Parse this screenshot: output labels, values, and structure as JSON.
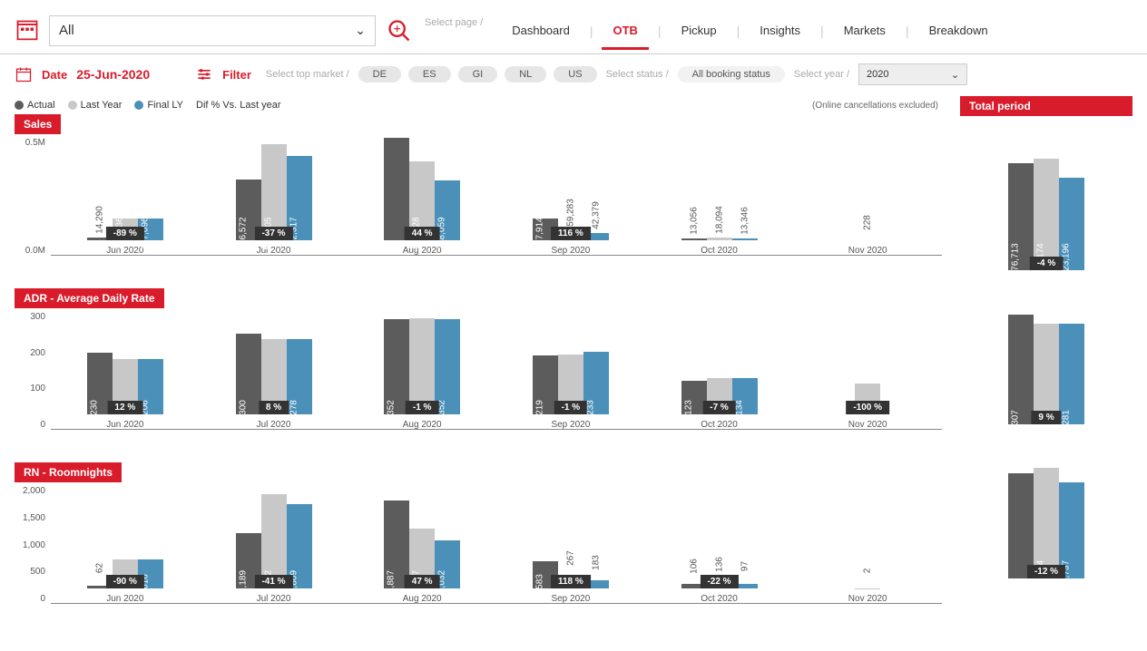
{
  "header": {
    "selector_value": "All",
    "nav_hint": "Select page /",
    "tabs": [
      "Dashboard",
      "OTB",
      "Pickup",
      "Insights",
      "Markets",
      "Breakdown"
    ],
    "active_tab": "OTB"
  },
  "filters": {
    "date_label": "Date",
    "date_value": "25-Jun-2020",
    "filter_label": "Filter",
    "market_hint": "Select top market /",
    "markets": [
      "DE",
      "ES",
      "GI",
      "NL",
      "US"
    ],
    "status_hint": "Select status /",
    "status_value": "All booking status",
    "year_hint": "Select year /",
    "year_value": "2020"
  },
  "legend": {
    "items": [
      {
        "label": "Actual",
        "color": "#5c5c5c"
      },
      {
        "label": "Last Year",
        "color": "#c8c8c8"
      },
      {
        "label": "Final LY",
        "color": "#4a90b8"
      }
    ],
    "diff_label": "Dif % Vs. Last year",
    "note": "(Online cancellations excluded)"
  },
  "colors": {
    "accent": "#d91c2b",
    "badge": "#333333",
    "actual": "#5c5c5c",
    "last_year": "#c8c8c8",
    "final_ly": "#4a90b8"
  },
  "sections": [
    {
      "title": "Sales",
      "y_ticks": [
        "0.5M",
        "0.0M"
      ],
      "y_max": 600000,
      "categories": [
        "Jun 2020",
        "Jul 2020",
        "Aug 2020",
        "Sep 2020",
        "Oct 2020",
        "Nov 2020"
      ],
      "groups": [
        {
          "actual": 14290,
          "ly": 127436,
          "fly": 127096,
          "diff": "-89 %",
          "labels": [
            "14,290",
            "127,436",
            "127,096"
          ]
        },
        {
          "actual": 356572,
          "ly": 562805,
          "fly": 492317,
          "diff": "-37 %",
          "labels": [
            "356,572",
            "562,805",
            "492,317"
          ]
        },
        {
          "actual": null,
          "ly": 460328,
          "fly": 348059,
          "diff": "44 %",
          "labels": [
            "",
            "460,328",
            "348,059"
          ],
          "actual_tall": 600000
        },
        {
          "actual": 127914,
          "ly": 59283,
          "fly": 42379,
          "diff": "116 %",
          "labels": [
            "127,914",
            "59,283",
            "42,379"
          ]
        },
        {
          "actual": 13056,
          "ly": 18094,
          "fly": 13346,
          "diff": null,
          "labels": [
            "13,056",
            "18,094",
            "13,346"
          ]
        },
        {
          "actual": null,
          "ly": 228,
          "fly": null,
          "diff": null,
          "labels": [
            "",
            "228",
            ""
          ]
        }
      ],
      "total": {
        "actual": 1176713,
        "ly": 1228174,
        "fly": 1023196,
        "diff": "-4 %",
        "labels": [
          "1,176,713",
          "1,228,174",
          "1,023,196"
        ],
        "max": 1300000
      }
    },
    {
      "title": "ADR - Average Daily Rate",
      "y_ticks": [
        "300",
        "200",
        "100",
        "0"
      ],
      "y_max": 380,
      "categories": [
        "Jun 2020",
        "Jul 2020",
        "Aug 2020",
        "Sep 2020",
        "Oct 2020",
        "Nov 2020"
      ],
      "groups": [
        {
          "actual": 230,
          "ly": 206,
          "fly": 206,
          "diff": "12 %",
          "labels": [
            "230",
            "206",
            "206"
          ]
        },
        {
          "actual": 300,
          "ly": 278,
          "fly": 278,
          "diff": "8 %",
          "labels": [
            "300",
            "278",
            "278"
          ]
        },
        {
          "actual": 352,
          "ly": 358,
          "fly": 352,
          "diff": "-1 %",
          "labels": [
            "352",
            "358",
            "352"
          ]
        },
        {
          "actual": 219,
          "ly": 222,
          "fly": 233,
          "diff": "-1 %",
          "labels": [
            "219",
            "222",
            "233"
          ]
        },
        {
          "actual": 123,
          "ly": 133,
          "fly": 134,
          "diff": "-7 %",
          "labels": [
            "123",
            "133",
            "134"
          ]
        },
        {
          "actual": null,
          "ly": 114,
          "fly": null,
          "diff": "-100 %",
          "labels": [
            "",
            "114",
            ""
          ]
        }
      ],
      "total": {
        "actual": 307,
        "ly": 283,
        "fly": 281,
        "diff": "9 %",
        "labels": [
          "307",
          "283",
          "281"
        ],
        "max": 330
      }
    },
    {
      "title": "RN - Roomnights",
      "y_ticks": [
        "2,000",
        "1,500",
        "1,000",
        "500",
        "0"
      ],
      "y_max": 2200,
      "categories": [
        "Jun 2020",
        "Jul 2020",
        "Aug 2020",
        "Sep 2020",
        "Oct 2020",
        "Nov 2020"
      ],
      "groups": [
        {
          "actual": 62,
          "ly": 620,
          "fly": 616,
          "diff": "-90 %",
          "labels": [
            "62",
            "620",
            "616"
          ]
        },
        {
          "actual": 1189,
          "ly": 2022,
          "fly": 1809,
          "diff": "-41 %",
          "labels": [
            "1,189",
            "2,022",
            "1,809"
          ]
        },
        {
          "actual": 1887,
          "ly": 1287,
          "fly": 1032,
          "diff": "47 %",
          "labels": [
            "1,887",
            "1,287",
            "1,032"
          ]
        },
        {
          "actual": 583,
          "ly": 267,
          "fly": 183,
          "diff": "118 %",
          "labels": [
            "583",
            "267",
            "183"
          ]
        },
        {
          "actual": 106,
          "ly": 136,
          "fly": 97,
          "diff": "-22 %",
          "labels": [
            "106",
            "136",
            "97"
          ]
        },
        {
          "actual": null,
          "ly": 2,
          "fly": null,
          "diff": null,
          "labels": [
            "",
            "2",
            ""
          ]
        }
      ],
      "total": {
        "actual": null,
        "ly": 4334,
        "fly": 3737,
        "diff": "-12 %",
        "labels": [
          "",
          "4,334",
          "3,737"
        ],
        "max": 4600,
        "actual_tall": 4100
      }
    }
  ],
  "right_title": "Total period"
}
